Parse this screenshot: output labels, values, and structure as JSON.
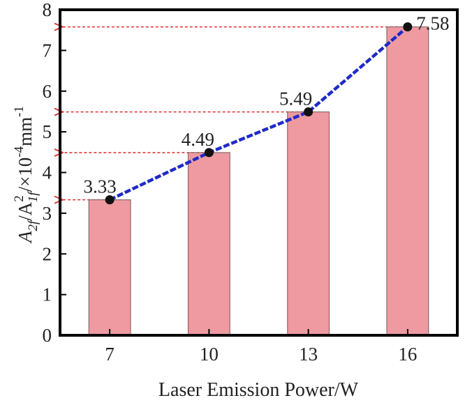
{
  "chart_data": {
    "type": "bar",
    "categories": [
      "7",
      "10",
      "13",
      "16"
    ],
    "values": [
      3.33,
      4.49,
      5.49,
      7.58
    ],
    "data_labels": [
      "3.33",
      "4.49",
      "5.49",
      "7.58"
    ],
    "title": "",
    "xlabel": "Laser Emission Power/W",
    "ylabel": {
      "a": "A",
      "a_sub": "2f",
      "slash1": "/A",
      "sup2": "2",
      "sub1f": "1f",
      "mid": "/×10",
      "exp": "-4",
      "unit": "mm",
      "unit_exp": "-1"
    },
    "ylim": [
      0,
      8
    ],
    "yticks": [
      "0",
      "1",
      "2",
      "3",
      "4",
      "5",
      "6",
      "7",
      "8"
    ],
    "grid": false,
    "legend": "none",
    "overlay_line": {
      "values": [
        3.33,
        4.49,
        5.49,
        7.58
      ],
      "style": "dashed"
    },
    "reference_arrows": "dotted arrows from each point to the y-axis",
    "colors": {
      "bar_fill": "#ee9aa0",
      "bar_edge": "#8a6a6a",
      "line": "#1f2ac8",
      "marker": "#111111",
      "arrow": "#e03a3a",
      "axes": "#000000"
    }
  }
}
